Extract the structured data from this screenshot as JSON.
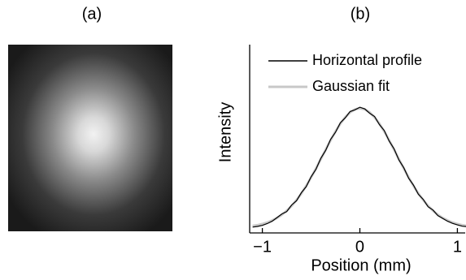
{
  "panel_a": {
    "label": "(a)"
  },
  "chart_data": {
    "type": "line",
    "title": "(b)",
    "x_label": "Position (mm)",
    "y_label": "Intensity",
    "x": [
      -1.1,
      -1.05,
      -1.0,
      -0.95,
      -0.9,
      -0.85,
      -0.8,
      -0.75,
      -0.7,
      -0.65,
      -0.6,
      -0.55,
      -0.5,
      -0.45,
      -0.4,
      -0.35,
      -0.3,
      -0.25,
      -0.2,
      -0.15,
      -0.1,
      -0.05,
      0,
      0.05,
      0.1,
      0.15,
      0.2,
      0.25,
      0.3,
      0.35,
      0.4,
      0.45,
      0.5,
      0.55,
      0.6,
      0.65,
      0.7,
      0.75,
      0.8,
      0.85,
      0.9,
      0.95,
      1.0,
      1.05,
      1.1
    ],
    "series": [
      {
        "name": "Gaussian fit",
        "color": "#c8c8c8",
        "values": [
          0.054,
          0.06,
          0.069,
          0.08,
          0.096,
          0.115,
          0.14,
          0.171,
          0.208,
          0.253,
          0.304,
          0.363,
          0.427,
          0.496,
          0.569,
          0.642,
          0.714,
          0.781,
          0.841,
          0.891,
          0.929,
          0.952,
          0.96,
          0.952,
          0.929,
          0.891,
          0.841,
          0.781,
          0.714,
          0.642,
          0.569,
          0.496,
          0.427,
          0.363,
          0.304,
          0.253,
          0.208,
          0.171,
          0.14,
          0.115,
          0.096,
          0.08,
          0.069,
          0.06,
          0.054
        ]
      },
      {
        "name": "Horizontal profile",
        "color": "#000000",
        "values": [
          0.045,
          0.05,
          0.058,
          0.072,
          0.09,
          0.118,
          0.146,
          0.165,
          0.215,
          0.248,
          0.31,
          0.356,
          0.432,
          0.49,
          0.575,
          0.636,
          0.72,
          0.775,
          0.848,
          0.886,
          0.935,
          0.948,
          0.968,
          0.955,
          0.922,
          0.897,
          0.835,
          0.788,
          0.708,
          0.648,
          0.562,
          0.502,
          0.421,
          0.368,
          0.298,
          0.258,
          0.202,
          0.176,
          0.134,
          0.112,
          0.09,
          0.074,
          0.062,
          0.052,
          0.048
        ]
      }
    ],
    "xlim": [
      -1.13,
      1.08
    ],
    "ylim": [
      0,
      1.2
    ],
    "xticks": [
      {
        "value": -1,
        "label": "−1"
      },
      0,
      1
    ],
    "legend": "upper left",
    "grid": false
  }
}
